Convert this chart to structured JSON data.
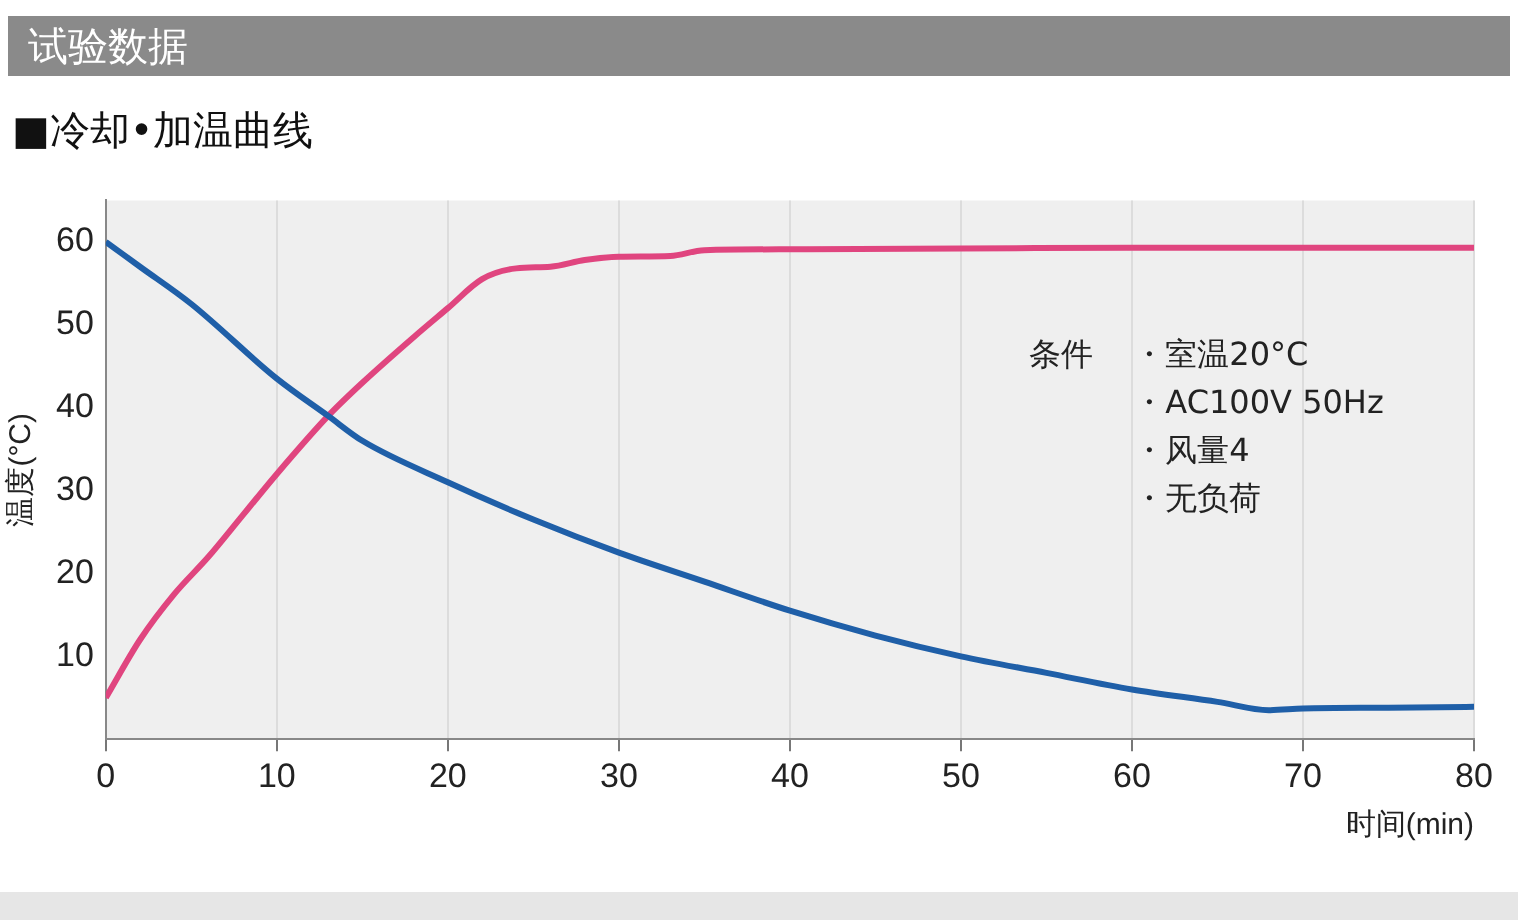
{
  "chart_data": {
    "type": "line",
    "title": "试验数据",
    "subtitle": "■冷却•加温曲线",
    "xlabel": "时间(min)",
    "ylabel": "温度(°C)",
    "annotations": [
      "条件",
      "・室温20°C",
      "・AC100V 50Hz",
      "・风量4",
      "・无负荷"
    ],
    "xlim": [
      0,
      80
    ],
    "xticks": [
      0,
      10,
      20,
      30,
      40,
      50,
      60,
      70,
      80
    ],
    "ylim": [
      0,
      65
    ],
    "yticks": [
      10,
      20,
      30,
      40,
      50,
      60
    ],
    "grid": "x",
    "legend": false,
    "marker": "none",
    "line_style": "solid",
    "series": [
      {
        "color": "#1f5fa8",
        "x": [
          0,
          2,
          5,
          10,
          13,
          15,
          20,
          25,
          30,
          35,
          40,
          45,
          50,
          55,
          60,
          65,
          68,
          70,
          75,
          80
        ],
        "values": [
          60,
          57,
          52.5,
          43.5,
          39,
          36,
          31,
          26.5,
          22.5,
          19,
          15.5,
          12.5,
          10,
          8,
          6,
          4.5,
          3.5,
          3.7,
          3.8,
          3.9
        ]
      },
      {
        "color": "#e0457f",
        "x": [
          0,
          2,
          4,
          6,
          8,
          10,
          13,
          15,
          18,
          20,
          22,
          24,
          26,
          28,
          30,
          33,
          35,
          40,
          50,
          60,
          70,
          80
        ],
        "values": [
          5,
          12,
          17.5,
          22,
          27,
          32,
          39,
          43,
          48.5,
          52,
          55.5,
          56.8,
          57,
          57.8,
          58.2,
          58.3,
          59,
          59.1,
          59.2,
          59.3,
          59.3,
          59.3
        ]
      }
    ]
  }
}
